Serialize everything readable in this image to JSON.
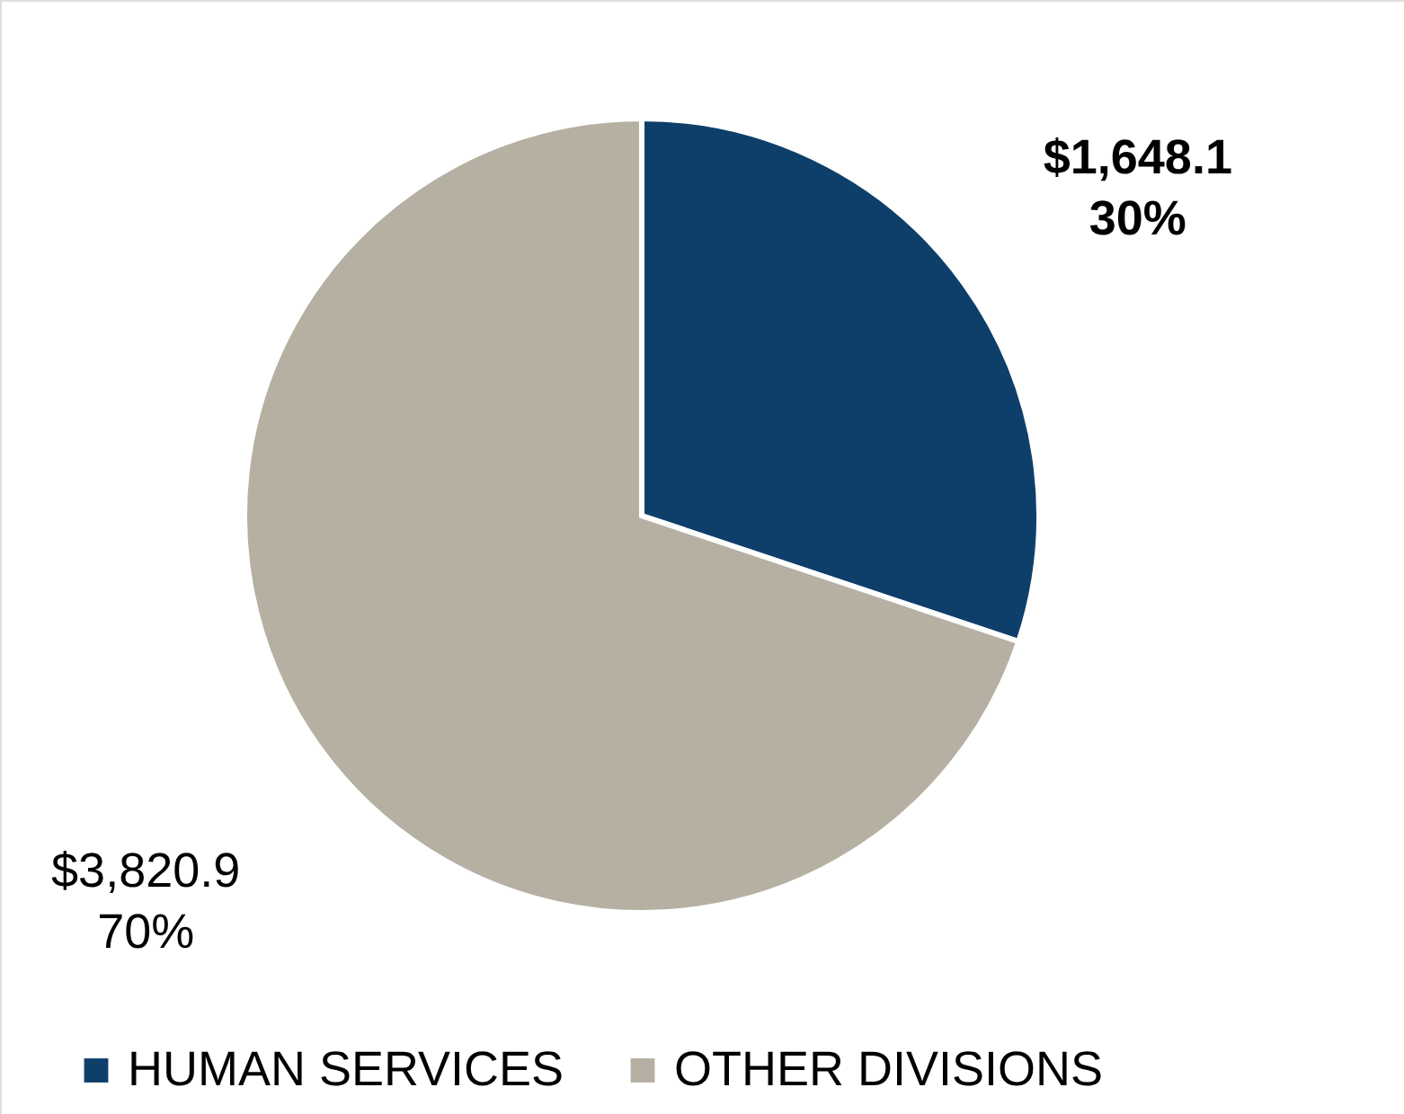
{
  "chart_data": {
    "type": "pie",
    "categories": [
      "HUMAN SERVICES",
      "OTHER DIVISIONS"
    ],
    "values": [
      1648.1,
      3820.9
    ],
    "colors": [
      "#0e3f6a",
      "#b5b0a2"
    ],
    "value_labels": [
      "$1,648.1\n30%",
      "$3,820.9\n70%"
    ],
    "legend": "bottom"
  }
}
